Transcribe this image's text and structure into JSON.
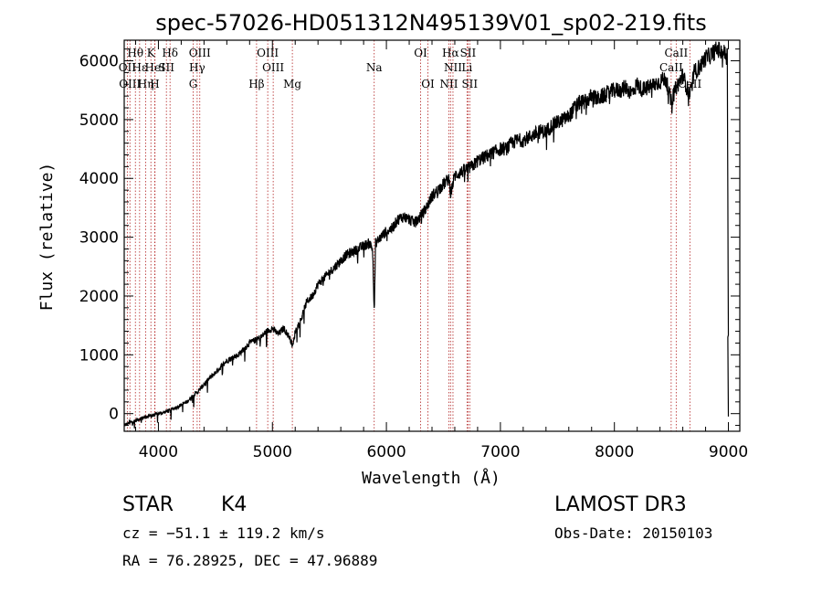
{
  "chart_data": {
    "type": "line",
    "title": "spec-57026-HD051312N495139V01_sp02-219.fits",
    "xlabel": "Wavelength (Å)",
    "ylabel": "Flux (relative)",
    "xlim": [
      3700,
      9100
    ],
    "ylim": [
      -300,
      6350
    ],
    "xticks": [
      4000,
      5000,
      6000,
      7000,
      8000,
      9000
    ],
    "yticks": [
      0,
      1000,
      2000,
      3000,
      4000,
      5000,
      6000
    ],
    "series": [
      {
        "name": "flux",
        "x": [
          3700,
          3750,
          3800,
          3850,
          3900,
          3950,
          4000,
          4050,
          4100,
          4150,
          4200,
          4250,
          4300,
          4350,
          4400,
          4450,
          4500,
          4550,
          4600,
          4650,
          4700,
          4750,
          4800,
          4850,
          4900,
          4950,
          5000,
          5050,
          5100,
          5150,
          5180,
          5200,
          5250,
          5300,
          5350,
          5400,
          5450,
          5500,
          5550,
          5600,
          5650,
          5700,
          5750,
          5800,
          5850,
          5880,
          5893,
          5905,
          5950,
          6000,
          6050,
          6100,
          6150,
          6200,
          6250,
          6300,
          6350,
          6400,
          6450,
          6500,
          6550,
          6563,
          6600,
          6650,
          6700,
          6750,
          6800,
          6850,
          6900,
          6950,
          7000,
          7050,
          7100,
          7150,
          7200,
          7250,
          7300,
          7350,
          7400,
          7450,
          7500,
          7550,
          7600,
          7650,
          7700,
          7750,
          7800,
          7850,
          7900,
          7950,
          8000,
          8050,
          8100,
          8150,
          8200,
          8250,
          8300,
          8350,
          8400,
          8450,
          8498,
          8542,
          8600,
          8662,
          8700,
          8750,
          8800,
          8850,
          8900,
          8950,
          8990,
          9000
        ],
        "values": [
          -200,
          -150,
          -120,
          -80,
          -50,
          -30,
          0,
          20,
          60,
          100,
          150,
          200,
          300,
          380,
          500,
          600,
          700,
          800,
          900,
          950,
          1000,
          1100,
          1200,
          1250,
          1300,
          1400,
          1450,
          1350,
          1450,
          1300,
          1150,
          1400,
          1600,
          1900,
          2000,
          2200,
          2300,
          2400,
          2500,
          2600,
          2700,
          2750,
          2800,
          2850,
          2900,
          2800,
          1700,
          2900,
          3000,
          3100,
          3150,
          3300,
          3350,
          3300,
          3250,
          3350,
          3500,
          3700,
          3800,
          3900,
          4000,
          3750,
          4050,
          4100,
          4150,
          4200,
          4300,
          4350,
          4400,
          4450,
          4500,
          4500,
          4600,
          4650,
          4650,
          4700,
          4750,
          4800,
          4800,
          4900,
          4950,
          5000,
          5050,
          5200,
          5300,
          5300,
          5400,
          5350,
          5400,
          5450,
          5500,
          5500,
          5550,
          5450,
          5600,
          5500,
          5550,
          5600,
          5650,
          5700,
          5300,
          5550,
          5750,
          5400,
          5800,
          5900,
          6050,
          6100,
          6200,
          6150,
          6100,
          1300
        ]
      }
    ],
    "spectral_lines": [
      {
        "label": "Hθ",
        "wl": 3798,
        "row": 1
      },
      {
        "label": "OII",
        "wl": 3727,
        "row": 2
      },
      {
        "label": "OIII",
        "wl": 3750,
        "row": 3
      },
      {
        "label": "Hε",
        "wl": 3835,
        "row": 2
      },
      {
        "label": "Hη",
        "wl": 3889,
        "row": 3
      },
      {
        "label": "K",
        "wl": 3934,
        "row": 1
      },
      {
        "label": "HeI",
        "wl": 3970,
        "row": 2
      },
      {
        "label": "H",
        "wl": 3968,
        "row": 3
      },
      {
        "label": "SII",
        "wl": 4070,
        "row": 2
      },
      {
        "label": "Hδ",
        "wl": 4102,
        "row": 1
      },
      {
        "label": "OIII",
        "wl": 4363,
        "row": 1
      },
      {
        "label": "Hγ",
        "wl": 4340,
        "row": 2
      },
      {
        "label": "G",
        "wl": 4305,
        "row": 3
      },
      {
        "label": "OIII",
        "wl": 4959,
        "row": 1
      },
      {
        "label": "OIII",
        "wl": 5007,
        "row": 2
      },
      {
        "label": "Hβ",
        "wl": 4861,
        "row": 3
      },
      {
        "label": "Mg",
        "wl": 5175,
        "row": 3
      },
      {
        "label": "Na",
        "wl": 5893,
        "row": 2
      },
      {
        "label": "OI",
        "wl": 6300,
        "row": 1
      },
      {
        "label": "OI",
        "wl": 6364,
        "row": 3
      },
      {
        "label": "Hα",
        "wl": 6563,
        "row": 1
      },
      {
        "label": "NII",
        "wl": 6584,
        "row": 2
      },
      {
        "label": "NII",
        "wl": 6548,
        "row": 3
      },
      {
        "label": "SII",
        "wl": 6716,
        "row": 1
      },
      {
        "label": "Li",
        "wl": 6707,
        "row": 2
      },
      {
        "label": "SII",
        "wl": 6731,
        "row": 3
      },
      {
        "label": "CaII",
        "wl": 8542,
        "row": 1
      },
      {
        "label": "CaII",
        "wl": 8498,
        "row": 2
      },
      {
        "label": "CaII",
        "wl": 8662,
        "row": 3
      }
    ]
  },
  "info": {
    "obj_class": "STAR",
    "subclass": "K4",
    "survey": "LAMOST DR3",
    "cz": "cz = −51.1 ± 119.2 km/s",
    "obs_date": "Obs-Date: 20150103",
    "coords": "RA =  76.28925, DEC =  47.96889"
  },
  "colors": {
    "line_marker": "#b22222",
    "spectrum": "#000000",
    "axis": "#000000",
    "background": "#ffffff"
  }
}
